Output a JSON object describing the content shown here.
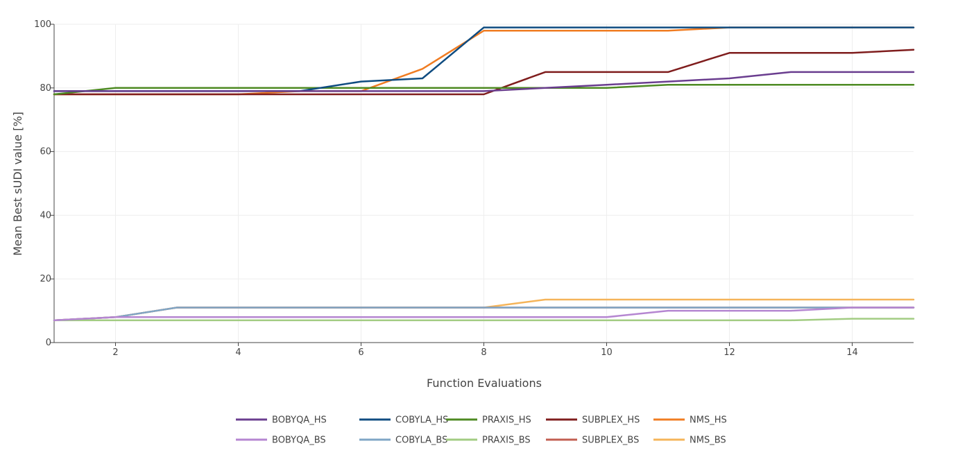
{
  "chart_data": {
    "type": "line",
    "title": "",
    "xlabel": "Function Evaluations",
    "ylabel": "Mean Best sUDI value [%]",
    "xlim": [
      1,
      15
    ],
    "ylim": [
      0,
      100
    ],
    "x_ticks": [
      2,
      4,
      6,
      8,
      10,
      12,
      14
    ],
    "y_ticks": [
      0,
      20,
      40,
      60,
      80,
      100
    ],
    "grid": true,
    "legend_position": "bottom",
    "x": [
      1,
      2,
      3,
      4,
      5,
      6,
      7,
      8,
      9,
      10,
      11,
      12,
      13,
      14,
      15
    ],
    "series": [
      {
        "name": "BOBYQA_HS",
        "color": "#6a3d8f",
        "values": [
          79,
          79,
          79,
          79,
          79,
          79,
          79,
          79,
          80,
          81,
          82,
          83,
          85,
          85,
          85
        ]
      },
      {
        "name": "COBYLA_HS",
        "color": "#0f4c81",
        "values": [
          79,
          79,
          79,
          79,
          79,
          82,
          83,
          99,
          99,
          99,
          99,
          99,
          99,
          99,
          99
        ]
      },
      {
        "name": "PRAXIS_HS",
        "color": "#4d8a22",
        "values": [
          78,
          80,
          80,
          80,
          80,
          80,
          80,
          80,
          80,
          80,
          81,
          81,
          81,
          81,
          81
        ]
      },
      {
        "name": "SUBPLEX_HS",
        "color": "#7f1d1d",
        "values": [
          78,
          78,
          78,
          78,
          78,
          78,
          78,
          78,
          85,
          85,
          85,
          91,
          91,
          91,
          92
        ]
      },
      {
        "name": "NMS_HS",
        "color": "#f07c22",
        "values": [
          78,
          78,
          78,
          78,
          79,
          79,
          86,
          98,
          98,
          98,
          98,
          99,
          99,
          99,
          99
        ]
      },
      {
        "name": "BOBYQA_BS",
        "color": "#b586d1",
        "values": [
          7,
          8,
          8,
          8,
          8,
          8,
          8,
          8,
          8,
          8,
          10,
          10,
          10,
          11,
          11
        ]
      },
      {
        "name": "COBYLA_BS",
        "color": "#7fa6c6",
        "values": [
          7,
          8,
          11,
          11,
          11,
          11,
          11,
          11,
          11,
          11,
          11,
          11,
          11,
          11,
          11
        ]
      },
      {
        "name": "PRAXIS_BS",
        "color": "#a2cc82",
        "values": [
          7,
          7,
          7,
          7,
          7,
          7,
          7,
          7,
          7,
          7,
          7,
          7,
          7,
          7.5,
          7.5
        ]
      },
      {
        "name": "SUBPLEX_BS",
        "color": "#c25e50",
        "values": [
          7,
          8,
          11,
          11,
          11,
          11,
          11,
          11,
          11,
          11,
          11,
          11,
          11,
          11,
          11
        ]
      },
      {
        "name": "NMS_BS",
        "color": "#f5b459",
        "values": [
          7,
          8,
          11,
          11,
          11,
          11,
          11,
          11,
          13.5,
          13.5,
          13.5,
          13.5,
          13.5,
          13.5,
          13.5
        ]
      }
    ]
  }
}
